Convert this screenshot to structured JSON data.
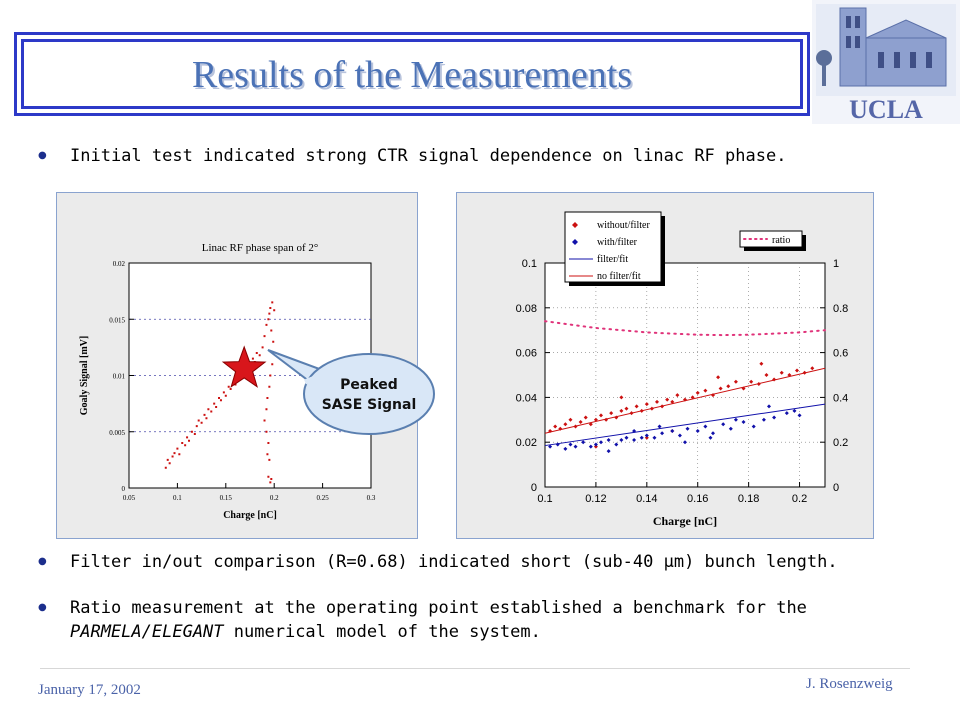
{
  "slide": {
    "title": "Results of the Measurements",
    "bullets": [
      "Initial test indicated strong CTR signal dependence on linac RF phase.",
      "Filter in/out comparison (R=0.68) indicated short (sub-40 μm) bunch length.",
      "Ratio measurement at the operating point established a benchmark for the",
      "PARMELA/ELEGANT",
      "numerical model of the system."
    ],
    "footer_left": "January 17, 2002",
    "footer_right": "J. Rosenzweig",
    "logo_text": "UCLA",
    "callout": [
      "Peaked",
      "SASE Signal"
    ]
  },
  "colors": {
    "title": "#4b72b6",
    "frame": "#2d39c8",
    "red": "#cc1111",
    "blue": "#1111aa",
    "pink": "#e0337a",
    "callout_fill": "#d9e7f7",
    "callout_stroke": "#5a7fb0"
  },
  "chart_data": [
    {
      "type": "scatter",
      "title": "Linac RF phase span of 2°",
      "xlabel": "Charge [nC]",
      "ylabel": "Goaly Signal [mV]",
      "xlim": [
        0.05,
        0.3
      ],
      "ylim": [
        0,
        0.02
      ],
      "xticks": [
        "0.05",
        "0.1",
        "0.15",
        "0.2",
        "0.25",
        "0.3"
      ],
      "yticks": [
        "0",
        "0.005",
        "0.01",
        "0.015",
        "0.02"
      ],
      "grid": "horizontal dashed",
      "series": [
        {
          "color": "red",
          "points": [
            [
              0.088,
              0.0018
            ],
            [
              0.09,
              0.0025
            ],
            [
              0.092,
              0.0022
            ],
            [
              0.095,
              0.0028
            ],
            [
              0.097,
              0.0031
            ],
            [
              0.1,
              0.0035
            ],
            [
              0.102,
              0.003
            ],
            [
              0.105,
              0.004
            ],
            [
              0.108,
              0.0038
            ],
            [
              0.11,
              0.0045
            ],
            [
              0.112,
              0.0042
            ],
            [
              0.115,
              0.005
            ],
            [
              0.118,
              0.0048
            ],
            [
              0.12,
              0.0055
            ],
            [
              0.122,
              0.006
            ],
            [
              0.125,
              0.0058
            ],
            [
              0.128,
              0.0065
            ],
            [
              0.13,
              0.0062
            ],
            [
              0.132,
              0.007
            ],
            [
              0.135,
              0.0068
            ],
            [
              0.138,
              0.0075
            ],
            [
              0.14,
              0.0072
            ],
            [
              0.143,
              0.008
            ],
            [
              0.145,
              0.0078
            ],
            [
              0.148,
              0.0085
            ],
            [
              0.15,
              0.0082
            ],
            [
              0.153,
              0.009
            ],
            [
              0.155,
              0.0088
            ],
            [
              0.158,
              0.0095
            ],
            [
              0.16,
              0.0092
            ],
            [
              0.163,
              0.0098
            ],
            [
              0.165,
              0.01
            ],
            [
              0.168,
              0.0105
            ],
            [
              0.17,
              0.0102
            ],
            [
              0.173,
              0.011
            ],
            [
              0.175,
              0.0108
            ],
            [
              0.178,
              0.0115
            ],
            [
              0.18,
              0.0112
            ],
            [
              0.182,
              0.012
            ],
            [
              0.185,
              0.0118
            ],
            [
              0.188,
              0.0125
            ],
            [
              0.19,
              0.0135
            ],
            [
              0.192,
              0.0145
            ],
            [
              0.194,
              0.015
            ],
            [
              0.195,
              0.0155
            ],
            [
              0.196,
              0.016
            ],
            [
              0.198,
              0.0165
            ],
            [
              0.2,
              0.0158
            ],
            [
              0.197,
              0.014
            ],
            [
              0.199,
              0.013
            ],
            [
              0.2,
              0.012
            ],
            [
              0.198,
              0.011
            ],
            [
              0.196,
              0.01
            ],
            [
              0.195,
              0.009
            ],
            [
              0.193,
              0.008
            ],
            [
              0.192,
              0.007
            ],
            [
              0.19,
              0.006
            ],
            [
              0.192,
              0.005
            ],
            [
              0.194,
              0.004
            ],
            [
              0.193,
              0.003
            ],
            [
              0.195,
              0.0025
            ],
            [
              0.196,
              0.0005
            ],
            [
              0.197,
              0.0008
            ],
            [
              0.194,
              0.001
            ]
          ]
        }
      ]
    },
    {
      "type": "scatter",
      "xlabel": "Charge [nC]",
      "xlim": [
        0.1,
        0.21
      ],
      "ylim": [
        0,
        0.1
      ],
      "y2lim": [
        0,
        1
      ],
      "xticks": [
        "0.1",
        "0.12",
        "0.14",
        "0.16",
        "0.18",
        "0.2"
      ],
      "yticks": [
        "0",
        "0.02",
        "0.04",
        "0.06",
        "0.08",
        "0.1"
      ],
      "y2ticks": [
        "0",
        "0.2",
        "0.4",
        "0.6",
        "0.8",
        "1"
      ],
      "grid": "dotted",
      "legend": [
        "without/filter",
        "with/filter",
        "filter/fit",
        "no filter/fit"
      ],
      "legend2": [
        "ratio"
      ],
      "series": [
        {
          "name": "without/filter",
          "color": "red",
          "points": [
            [
              0.102,
              0.025
            ],
            [
              0.104,
              0.027
            ],
            [
              0.106,
              0.026
            ],
            [
              0.108,
              0.028
            ],
            [
              0.11,
              0.03
            ],
            [
              0.112,
              0.027
            ],
            [
              0.114,
              0.029
            ],
            [
              0.116,
              0.031
            ],
            [
              0.118,
              0.028
            ],
            [
              0.12,
              0.03
            ],
            [
              0.122,
              0.032
            ],
            [
              0.124,
              0.03
            ],
            [
              0.126,
              0.033
            ],
            [
              0.128,
              0.031
            ],
            [
              0.13,
              0.034
            ],
            [
              0.132,
              0.035
            ],
            [
              0.134,
              0.033
            ],
            [
              0.136,
              0.036
            ],
            [
              0.138,
              0.034
            ],
            [
              0.14,
              0.037
            ],
            [
              0.142,
              0.035
            ],
            [
              0.144,
              0.038
            ],
            [
              0.146,
              0.036
            ],
            [
              0.148,
              0.039
            ],
            [
              0.15,
              0.038
            ],
            [
              0.152,
              0.041
            ],
            [
              0.155,
              0.039
            ],
            [
              0.158,
              0.04
            ],
            [
              0.16,
              0.042
            ],
            [
              0.163,
              0.043
            ],
            [
              0.166,
              0.041
            ],
            [
              0.169,
              0.044
            ],
            [
              0.172,
              0.045
            ],
            [
              0.175,
              0.047
            ],
            [
              0.178,
              0.044
            ],
            [
              0.181,
              0.047
            ],
            [
              0.184,
              0.046
            ],
            [
              0.187,
              0.05
            ],
            [
              0.19,
              0.048
            ],
            [
              0.193,
              0.051
            ],
            [
              0.196,
              0.05
            ],
            [
              0.199,
              0.052
            ],
            [
              0.202,
              0.051
            ],
            [
              0.205,
              0.053
            ],
            [
              0.185,
              0.055
            ],
            [
              0.168,
              0.049
            ],
            [
              0.13,
              0.04
            ],
            [
              0.12,
              0.018
            ],
            [
              0.14,
              0.022
            ],
            [
              0.15,
              0.025
            ]
          ]
        },
        {
          "name": "with/filter",
          "color": "blue",
          "points": [
            [
              0.102,
              0.018
            ],
            [
              0.105,
              0.019
            ],
            [
              0.108,
              0.017
            ],
            [
              0.11,
              0.019
            ],
            [
              0.112,
              0.018
            ],
            [
              0.115,
              0.02
            ],
            [
              0.118,
              0.018
            ],
            [
              0.12,
              0.019
            ],
            [
              0.122,
              0.02
            ],
            [
              0.125,
              0.021
            ],
            [
              0.128,
              0.019
            ],
            [
              0.13,
              0.021
            ],
            [
              0.132,
              0.022
            ],
            [
              0.135,
              0.021
            ],
            [
              0.138,
              0.022
            ],
            [
              0.14,
              0.023
            ],
            [
              0.143,
              0.022
            ],
            [
              0.146,
              0.024
            ],
            [
              0.15,
              0.025
            ],
            [
              0.153,
              0.023
            ],
            [
              0.156,
              0.026
            ],
            [
              0.16,
              0.025
            ],
            [
              0.163,
              0.027
            ],
            [
              0.166,
              0.024
            ],
            [
              0.17,
              0.028
            ],
            [
              0.173,
              0.026
            ],
            [
              0.178,
              0.029
            ],
            [
              0.182,
              0.027
            ],
            [
              0.186,
              0.03
            ],
            [
              0.19,
              0.031
            ],
            [
              0.195,
              0.033
            ],
            [
              0.198,
              0.034
            ],
            [
              0.2,
              0.032
            ],
            [
              0.188,
              0.036
            ],
            [
              0.175,
              0.03
            ],
            [
              0.165,
              0.022
            ],
            [
              0.155,
              0.02
            ],
            [
              0.145,
              0.027
            ],
            [
              0.135,
              0.025
            ],
            [
              0.125,
              0.016
            ]
          ]
        },
        {
          "name": "filter/fit",
          "type": "line",
          "color": "blue",
          "points": [
            [
              0.1,
              0.0185
            ],
            [
              0.21,
              0.037
            ]
          ]
        },
        {
          "name": "no filter/fit",
          "type": "line",
          "color": "red",
          "points": [
            [
              0.1,
              0.024
            ],
            [
              0.21,
              0.053
            ]
          ]
        },
        {
          "name": "ratio",
          "type": "dotted",
          "axis": "right",
          "color": "pink",
          "points": [
            [
              0.1,
              0.74
            ],
            [
              0.11,
              0.725
            ],
            [
              0.12,
              0.71
            ],
            [
              0.13,
              0.7
            ],
            [
              0.14,
              0.69
            ],
            [
              0.15,
              0.685
            ],
            [
              0.16,
              0.68
            ],
            [
              0.17,
              0.678
            ],
            [
              0.18,
              0.68
            ],
            [
              0.19,
              0.685
            ],
            [
              0.2,
              0.69
            ],
            [
              0.21,
              0.7
            ]
          ]
        }
      ]
    }
  ]
}
